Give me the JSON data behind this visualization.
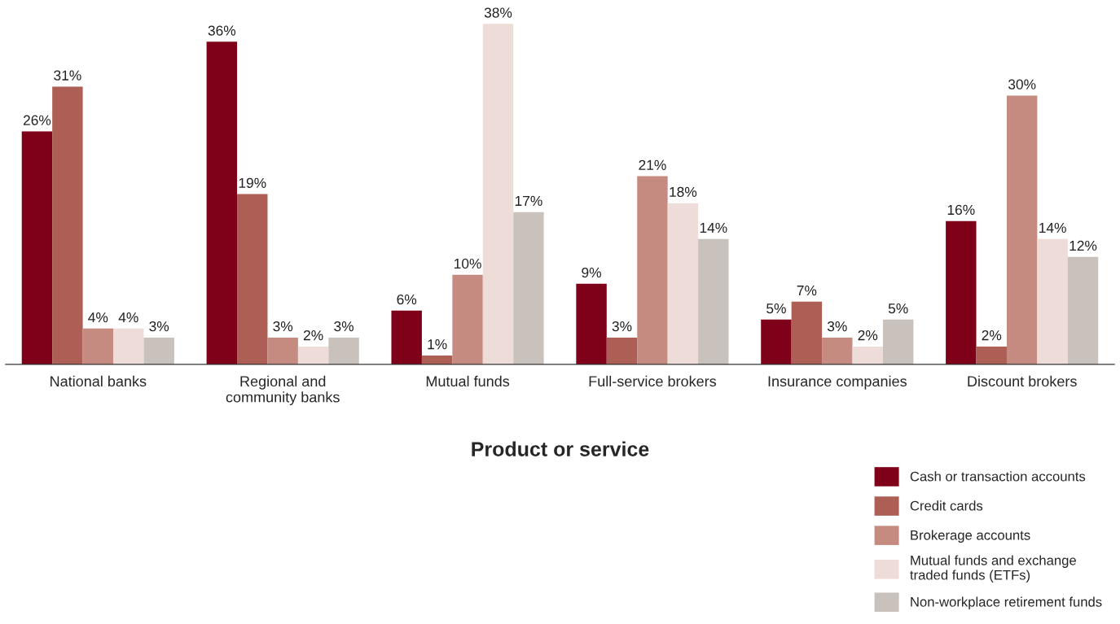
{
  "chart_data": {
    "type": "bar",
    "xlabel": "Product or service",
    "categories": [
      "National banks",
      "Regional and\ncommunity banks",
      "Mutual funds",
      "Full-service brokers",
      "Insurance companies",
      "Discount brokers"
    ],
    "series": [
      {
        "name": "Cash or transaction accounts",
        "color": "#7f0019",
        "values": [
          26,
          36,
          6,
          9,
          5,
          16
        ],
        "value_labels": [
          "26%",
          "36%",
          "6%",
          "9%",
          "5%",
          "16%"
        ]
      },
      {
        "name": "Credit cards",
        "color": "#ad5f55",
        "values": [
          31,
          19,
          1,
          3,
          7,
          2
        ],
        "value_labels": [
          "31%",
          "19%",
          "1%",
          "3%",
          "7%",
          "2%"
        ]
      },
      {
        "name": "Brokerage accounts",
        "color": "#c68b80",
        "values": [
          4,
          3,
          10,
          21,
          3,
          30
        ],
        "value_labels": [
          "4%",
          "3%",
          "10%",
          "21%",
          "3%",
          "30%"
        ]
      },
      {
        "name": "Mutual funds and exchange\ntraded funds (ETFs)",
        "color": "#eedcd9",
        "values": [
          4,
          2,
          38,
          18,
          2,
          14
        ],
        "value_labels": [
          "4%",
          "2%",
          "38%",
          "18%",
          "2%",
          "14%"
        ]
      },
      {
        "name": "Non-workplace retirement funds",
        "color": "#c9c1bb",
        "values": [
          3,
          3,
          17,
          14,
          5,
          12
        ],
        "value_labels": [
          "3%",
          "3%",
          "17%",
          "14%",
          "5%",
          "12%"
        ]
      }
    ],
    "legend": "bottom right",
    "grid": false
  }
}
